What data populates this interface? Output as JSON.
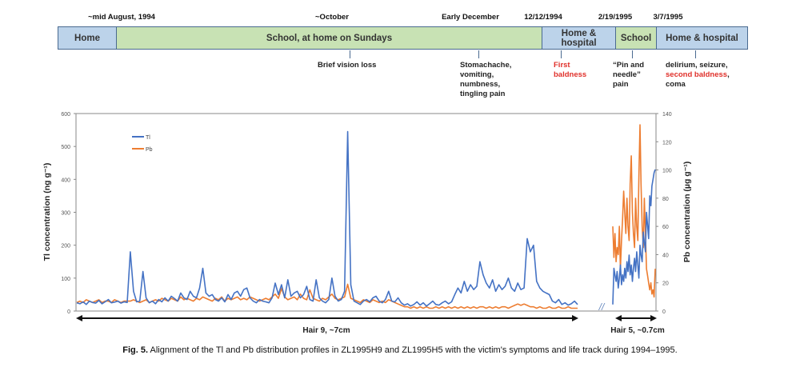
{
  "timeline": {
    "dates": [
      "~mid August, 1994",
      "~October",
      "Early December",
      "12/12/1994",
      "2/19/1995",
      "3/7/1995"
    ],
    "periods": [
      "Home",
      "School, at home on Sundays",
      "Home & hospital",
      "School",
      "Home & hospital"
    ],
    "events": {
      "vision": "Brief vision loss",
      "stomach": [
        "Stomachache,",
        "vomiting,",
        "numbness,",
        "tingling pain"
      ],
      "first_baldness": [
        "First",
        "baldness"
      ],
      "pin": [
        "“Pin and",
        "needle”",
        "pain"
      ],
      "delirium": [
        "delirium, seizure,",
        "second baldness",
        ",",
        "coma"
      ]
    }
  },
  "chart_data": {
    "type": "line",
    "ylabel_left": "Tl concentration (ng g⁻¹)",
    "ylabel_right": "Pb concentration (µg g⁻¹)",
    "ylim_left": [
      0,
      600
    ],
    "ylim_right": [
      0,
      140
    ],
    "yticks_left": [
      "0",
      "100",
      "200",
      "300",
      "400",
      "500",
      "600"
    ],
    "yticks_right": [
      "0",
      "20",
      "40",
      "60",
      "80",
      "100",
      "120",
      "140"
    ],
    "legend": [
      "Tl",
      "Pb"
    ],
    "legend_position": "top-left",
    "colors": {
      "Tl": "#4472c4",
      "Pb": "#ed7d31"
    },
    "segments": [
      {
        "name": "Hair 9, ~7cm",
        "Tl": [
          25,
          22,
          28,
          20,
          30,
          26,
          24,
          32,
          22,
          28,
          35,
          25,
          27,
          30,
          24,
          28,
          26,
          180,
          60,
          28,
          30,
          120,
          40,
          25,
          30,
          22,
          35,
          28,
          40,
          30,
          45,
          38,
          30,
          55,
          40,
          35,
          60,
          45,
          40,
          70,
          130,
          55,
          45,
          50,
          35,
          30,
          40,
          28,
          50,
          35,
          55,
          60,
          45,
          65,
          70,
          40,
          30,
          25,
          35,
          30,
          28,
          25,
          40,
          85,
          50,
          80,
          40,
          95,
          45,
          55,
          60,
          40,
          50,
          75,
          35,
          30,
          95,
          40,
          30,
          25,
          35,
          100,
          45,
          30,
          35,
          60,
          545,
          80,
          30,
          25,
          20,
          30,
          35,
          28,
          40,
          45,
          30,
          25,
          35,
          60,
          30,
          28,
          40,
          25,
          18,
          22,
          15,
          20,
          28,
          18,
          25,
          15,
          22,
          30,
          20,
          18,
          25,
          30,
          22,
          28,
          50,
          70,
          55,
          90,
          60,
          80,
          65,
          75,
          150,
          110,
          85,
          70,
          95,
          60,
          80,
          65,
          75,
          100,
          70,
          60,
          85,
          65,
          70,
          220,
          180,
          200,
          90,
          70,
          60,
          55,
          50,
          30,
          25,
          35,
          20,
          25,
          18,
          22,
          30,
          20
        ],
        "Pb": [
          6,
          7,
          6,
          8,
          7,
          6,
          7,
          8,
          6,
          7,
          7,
          6,
          8,
          7,
          6,
          7,
          7,
          7,
          8,
          7,
          6,
          7,
          8,
          6,
          7,
          8,
          7,
          9,
          8,
          7,
          9,
          8,
          7,
          10,
          8,
          9,
          8,
          7,
          9,
          8,
          10,
          9,
          8,
          7,
          9,
          8,
          10,
          7,
          9,
          8,
          9,
          10,
          8,
          9,
          8,
          10,
          9,
          8,
          7,
          8,
          9,
          8,
          10,
          12,
          9,
          16,
          10,
          8,
          9,
          10,
          8,
          12,
          9,
          8,
          15,
          9,
          8,
          7,
          9,
          8,
          10,
          12,
          9,
          8,
          9,
          10,
          19,
          9,
          8,
          7,
          6,
          8,
          7,
          6,
          8,
          7,
          6,
          7,
          6,
          8,
          7,
          6,
          5,
          4,
          3,
          3,
          2,
          3,
          2,
          3,
          2,
          3,
          2,
          2,
          3,
          2,
          3,
          2,
          3,
          2,
          3,
          2,
          3,
          2,
          3,
          2,
          3,
          2,
          3,
          3,
          2,
          3,
          2,
          3,
          2,
          3,
          3,
          2,
          3,
          4,
          5,
          4,
          5,
          4,
          3,
          3,
          2,
          3,
          2,
          2,
          3,
          2,
          2,
          3,
          2,
          2,
          3,
          2,
          2,
          2
        ]
      },
      {
        "name": "Hair 5, ~0.7cm",
        "Tl": [
          20,
          130,
          110,
          90,
          120,
          70,
          100,
          140,
          80,
          110,
          90,
          130,
          100,
          150,
          120,
          170,
          110,
          140,
          90,
          130,
          160,
          120,
          180,
          140,
          100,
          200,
          170,
          150,
          240,
          210,
          180,
          300,
          260,
          220,
          350,
          320,
          380,
          400,
          420,
          430
        ],
        "Pb": [
          60,
          38,
          55,
          35,
          45,
          40,
          60,
          30,
          50,
          65,
          85,
          70,
          55,
          80,
          60,
          50,
          90,
          110,
          70,
          55,
          45,
          80,
          60,
          50,
          95,
          132,
          90,
          60,
          45,
          80,
          55,
          30,
          25,
          20,
          15,
          20,
          12,
          15,
          10,
          30
        ]
      }
    ]
  },
  "caption": {
    "label": "Fig. 5.",
    "text": " Alignment of the Tl and Pb distribution profiles in ZL1995H9 and ZL1995H5 with the victim's symptoms and life track during 1994–1995."
  }
}
